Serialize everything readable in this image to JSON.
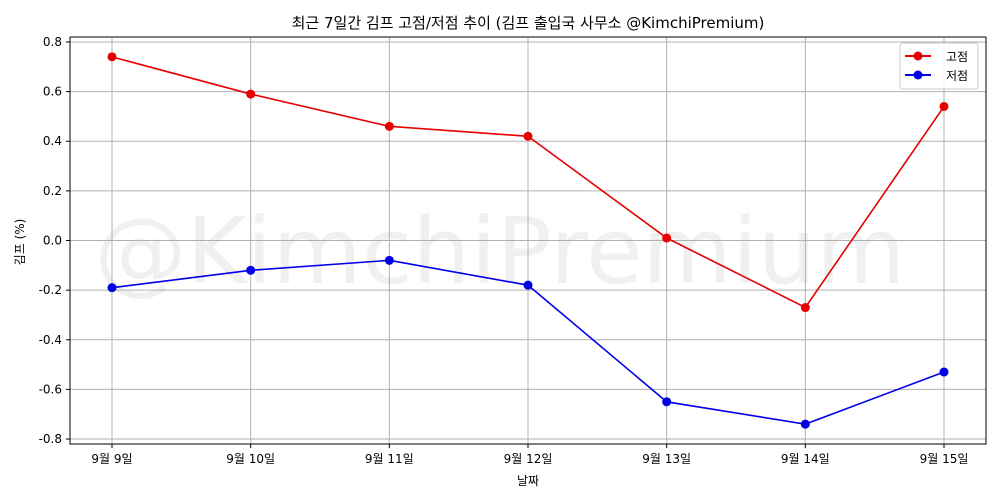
{
  "chart_data": {
    "type": "line",
    "title": "최근 7일간 김프 고점/저점 추이 (김프 출입국 사무소 @KimchiPremium)",
    "xlabel": "날짜",
    "ylabel": "김프 (%)",
    "categories": [
      "9월 9일",
      "9월 10일",
      "9월 11일",
      "9월 12일",
      "9월 13일",
      "9월 14일",
      "9월 15일"
    ],
    "series": [
      {
        "name": "고점",
        "color": "#e60000",
        "values": [
          0.74,
          0.59,
          0.46,
          0.42,
          0.01,
          -0.27,
          0.54
        ]
      },
      {
        "name": "저점",
        "color": "#0000e6",
        "values": [
          -0.19,
          -0.12,
          -0.08,
          -0.18,
          -0.65,
          -0.74,
          -0.53
        ]
      }
    ],
    "ylim": [
      -0.82,
      0.82
    ],
    "yticks": [
      0.8,
      0.6,
      0.4,
      0.2,
      0.0,
      -0.2,
      -0.4,
      -0.6,
      -0.8
    ],
    "ytick_labels": [
      "0.8",
      "0.6",
      "0.4",
      "0.2",
      "0.0",
      "-0.2",
      "-0.4",
      "-0.6",
      "-0.8"
    ],
    "grid": true,
    "legend_position": "top-right",
    "watermark": "@KimchiPremium"
  }
}
